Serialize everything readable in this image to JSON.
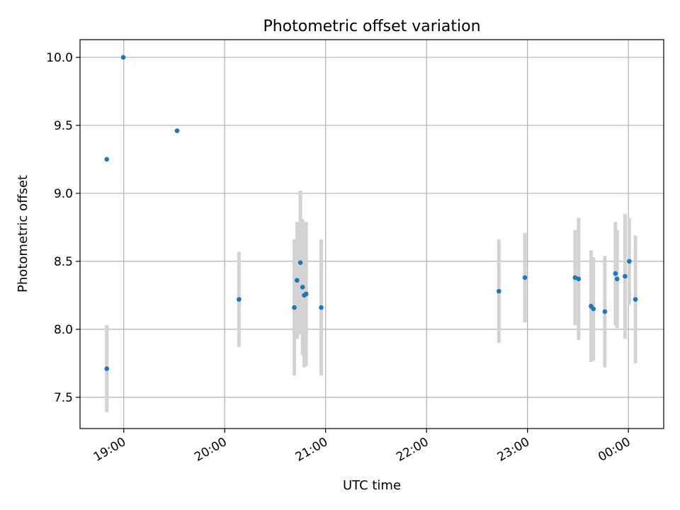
{
  "chart_data": {
    "type": "scatter",
    "title": "Photometric offset variation",
    "xlabel": "UTC time",
    "ylabel": "Photometric offset",
    "grid": true,
    "x_ticks": [
      {
        "label": "19:00",
        "value": 0
      },
      {
        "label": "20:00",
        "value": 60
      },
      {
        "label": "21:00",
        "value": 120
      },
      {
        "label": "22:00",
        "value": 180
      },
      {
        "label": "23:00",
        "value": 240
      },
      {
        "label": "00:00",
        "value": 300
      }
    ],
    "y_ticks": [
      "7.5",
      "8.0",
      "8.5",
      "9.0",
      "9.5",
      "10.0"
    ],
    "xlim": [
      -26,
      321
    ],
    "ylim": [
      7.27,
      10.13
    ],
    "marker_color": "#1f77b4",
    "errorbar_color": "#d3d3d3",
    "points": [
      {
        "x": -10.1,
        "y": 7.71,
        "err": 0.32
      },
      {
        "x": -10.1,
        "y": 9.25,
        "err": null
      },
      {
        "x": -0.3,
        "y": 10.0,
        "err": null
      },
      {
        "x": 31.7,
        "y": 9.46,
        "err": null
      },
      {
        "x": 68.5,
        "y": 8.22,
        "err": 0.35
      },
      {
        "x": 101.4,
        "y": 8.16,
        "err": 0.5
      },
      {
        "x": 103.0,
        "y": 8.36,
        "err": 0.43
      },
      {
        "x": 105.0,
        "y": 8.49,
        "err": 0.53
      },
      {
        "x": 106.3,
        "y": 8.31,
        "err": 0.5
      },
      {
        "x": 107.3,
        "y": 8.25,
        "err": 0.53
      },
      {
        "x": 108.4,
        "y": 8.26,
        "err": 0.53
      },
      {
        "x": 117.4,
        "y": 8.16,
        "err": 0.5
      },
      {
        "x": 223.0,
        "y": 8.28,
        "err": 0.38
      },
      {
        "x": 238.5,
        "y": 8.38,
        "err": 0.33
      },
      {
        "x": 268.3,
        "y": 8.38,
        "err": 0.35
      },
      {
        "x": 270.4,
        "y": 8.37,
        "err": 0.45
      },
      {
        "x": 277.8,
        "y": 8.17,
        "err": 0.41
      },
      {
        "x": 279.2,
        "y": 8.15,
        "err": 0.38
      },
      {
        "x": 286.0,
        "y": 8.13,
        "err": 0.41
      },
      {
        "x": 292.3,
        "y": 8.41,
        "err": 0.38
      },
      {
        "x": 293.3,
        "y": 8.37,
        "err": 0.36
      },
      {
        "x": 298.0,
        "y": 8.39,
        "err": 0.46
      },
      {
        "x": 300.5,
        "y": 8.5,
        "err": 0.32
      },
      {
        "x": 304.2,
        "y": 8.22,
        "err": 0.47
      }
    ]
  }
}
